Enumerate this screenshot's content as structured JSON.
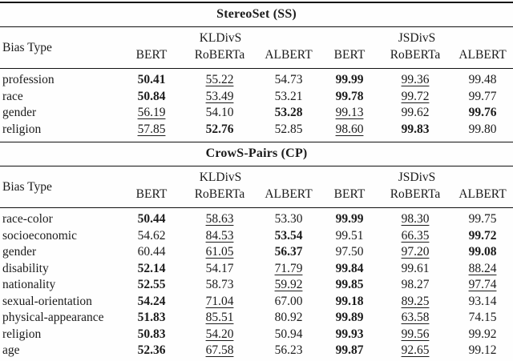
{
  "palette": {
    "text": "#1b1b1b",
    "rule": "#111111",
    "background": "#fefefe"
  },
  "sections": [
    {
      "title": "StereoSet (SS)",
      "bias_type_label": "Bias Type",
      "groups": [
        "KLDivS",
        "JSDivS"
      ],
      "models": [
        "BERT",
        "RoBERTa",
        "ALBERT",
        "BERT",
        "RoBERTa",
        "ALBERT"
      ],
      "rows": [
        {
          "label": "profession",
          "values": [
            "50.41",
            "55.22",
            "54.73",
            "99.99",
            "99.36",
            "99.48"
          ],
          "styles": [
            "b",
            "u",
            "p",
            "b",
            "u",
            "p"
          ]
        },
        {
          "label": "race",
          "values": [
            "50.84",
            "53.49",
            "53.21",
            "99.78",
            "99.72",
            "99.77"
          ],
          "styles": [
            "b",
            "u",
            "p",
            "b",
            "u",
            "p"
          ]
        },
        {
          "label": "gender",
          "values": [
            "56.19",
            "54.10",
            "53.28",
            "99.13",
            "99.62",
            "99.76"
          ],
          "styles": [
            "u",
            "p",
            "b",
            "u",
            "p",
            "b"
          ]
        },
        {
          "label": "religion",
          "values": [
            "57.85",
            "52.76",
            "52.85",
            "98.60",
            "99.83",
            "99.80"
          ],
          "styles": [
            "u",
            "b",
            "p",
            "u",
            "b",
            "p"
          ]
        }
      ]
    },
    {
      "title": "CrowS-Pairs (CP)",
      "bias_type_label": "Bias Type",
      "groups": [
        "KLDivS",
        "JSDivS"
      ],
      "models": [
        "BERT",
        "RoBERTa",
        "ALBERT",
        "BERT",
        "RoBERTa",
        "ALBERT"
      ],
      "rows": [
        {
          "label": "race-color",
          "values": [
            "50.44",
            "58.63",
            "53.30",
            "99.99",
            "98.30",
            "99.75"
          ],
          "styles": [
            "b",
            "u",
            "p",
            "b",
            "u",
            "p"
          ]
        },
        {
          "label": "socioeconomic",
          "values": [
            "54.62",
            "84.53",
            "53.54",
            "99.51",
            "66.35",
            "99.72"
          ],
          "styles": [
            "p",
            "u",
            "b",
            "p",
            "u",
            "b"
          ]
        },
        {
          "label": "gender",
          "values": [
            "60.44",
            "61.05",
            "56.37",
            "97.50",
            "97.20",
            "99.08"
          ],
          "styles": [
            "p",
            "u",
            "b",
            "p",
            "u",
            "b"
          ]
        },
        {
          "label": "disability",
          "values": [
            "52.14",
            "54.17",
            "71.79",
            "99.84",
            "99.61",
            "88.24"
          ],
          "styles": [
            "b",
            "p",
            "u",
            "b",
            "p",
            "u"
          ]
        },
        {
          "label": "nationality",
          "values": [
            "52.55",
            "58.73",
            "59.92",
            "99.85",
            "98.27",
            "97.74"
          ],
          "styles": [
            "b",
            "p",
            "u",
            "b",
            "p",
            "u"
          ]
        },
        {
          "label": "sexual-orientation",
          "values": [
            "54.24",
            "71.04",
            "67.00",
            "99.18",
            "89.25",
            "93.14"
          ],
          "styles": [
            "b",
            "u",
            "p",
            "b",
            "u",
            "p"
          ]
        },
        {
          "label": "physical-appearance",
          "values": [
            "51.83",
            "85.51",
            "80.92",
            "99.89",
            "63.58",
            "74.15"
          ],
          "styles": [
            "b",
            "u",
            "p",
            "b",
            "u",
            "p"
          ]
        },
        {
          "label": "religion",
          "values": [
            "50.83",
            "54.20",
            "50.94",
            "99.93",
            "99.56",
            "99.92"
          ],
          "styles": [
            "b",
            "u",
            "p",
            "b",
            "u",
            "p"
          ]
        },
        {
          "label": "age",
          "values": [
            "52.36",
            "67.58",
            "56.23",
            "99.87",
            "92.65",
            "99.12"
          ],
          "styles": [
            "b",
            "u",
            "p",
            "b",
            "u",
            "p"
          ]
        }
      ]
    }
  ]
}
